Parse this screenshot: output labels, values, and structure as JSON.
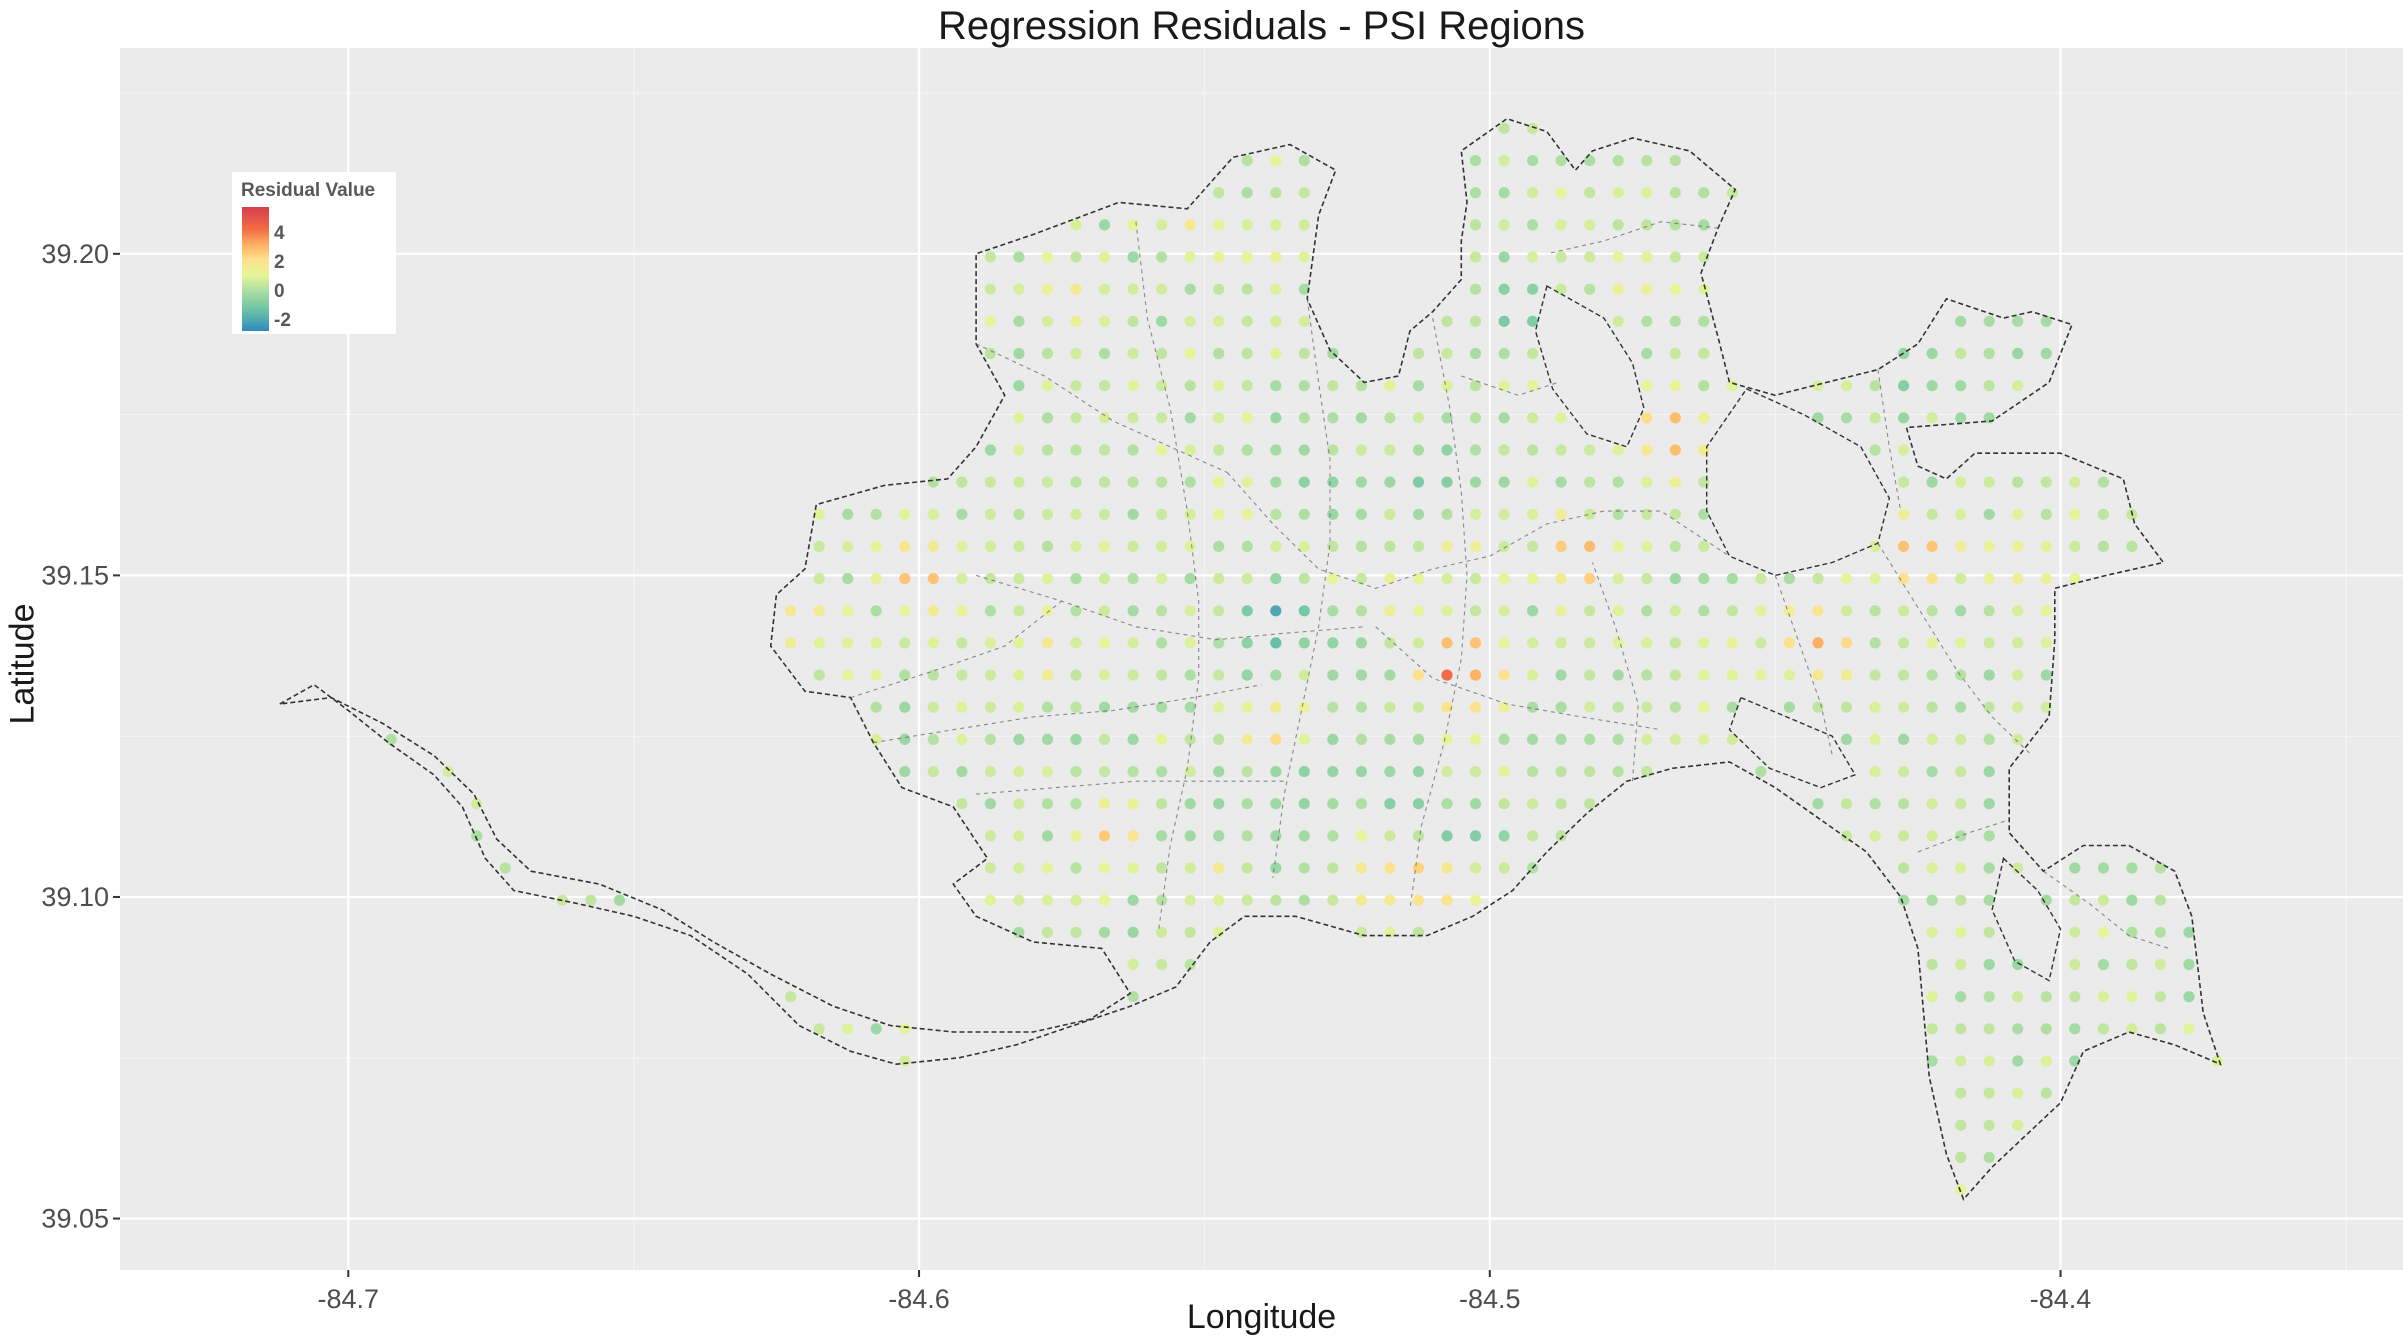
{
  "title": "Regression Residuals - PSI Regions",
  "x_axis": {
    "label": "Longitude",
    "ticks": [
      "-84.7",
      "-84.6",
      "-84.5",
      "-84.4"
    ],
    "tick_values": [
      -84.7,
      -84.6,
      -84.5,
      -84.4
    ]
  },
  "y_axis": {
    "label": "Latitude",
    "ticks": [
      "39.05",
      "39.10",
      "39.15",
      "39.20"
    ],
    "tick_values": [
      39.05,
      39.1,
      39.15,
      39.2
    ]
  },
  "legend": {
    "title": "Residual Value",
    "labels": [
      "4",
      "2",
      "0",
      "-2"
    ],
    "label_values": [
      4,
      2,
      0,
      -2
    ],
    "placement": "top-left"
  },
  "colors": {
    "panel_background": "#ebebeb",
    "grid_major": "#ffffff",
    "region_border": "#333333",
    "scale": [
      "#3288bd",
      "#66c2a5",
      "#abdda4",
      "#e6f598",
      "#fee08b",
      "#fdae61",
      "#f46d43",
      "#d53e4f"
    ]
  },
  "chart_data": {
    "type": "scatter",
    "grid_spacing_degrees": 0.005,
    "xlim": [
      -84.74,
      -84.34
    ],
    "ylim": [
      39.042,
      39.232
    ],
    "hotspots": [
      {
        "lon": -84.505,
        "lat": 39.135,
        "residual": 4.5
      },
      {
        "lon": -84.535,
        "lat": 39.125,
        "residual": 3.0
      },
      {
        "lon": -84.468,
        "lat": 39.172,
        "residual": 2.8
      },
      {
        "lon": -84.425,
        "lat": 39.153,
        "residual": 2.7
      },
      {
        "lon": -84.484,
        "lat": 39.153,
        "residual": 2.6
      },
      {
        "lon": -84.442,
        "lat": 39.139,
        "residual": 2.5
      },
      {
        "lon": -84.6,
        "lat": 39.15,
        "residual": 2.5
      },
      {
        "lon": -84.55,
        "lat": 39.107,
        "residual": 2.7
      },
      {
        "lon": -84.565,
        "lat": 39.11,
        "residual": 2.2
      },
      {
        "lon": -84.51,
        "lat": 39.104,
        "residual": 2.6
      },
      {
        "lon": -84.498,
        "lat": 39.134,
        "residual": 1.5
      },
      {
        "lon": -84.52,
        "lat": 39.103,
        "residual": 1.5
      },
      {
        "lon": -84.578,
        "lat": 39.138,
        "residual": 1.2
      },
      {
        "lon": -84.62,
        "lat": 39.143,
        "residual": 1.3
      },
      {
        "lon": -84.573,
        "lat": 39.193,
        "residual": 1.2
      },
      {
        "lon": -84.552,
        "lat": 39.205,
        "residual": 1.2
      },
      {
        "lon": -84.515,
        "lat": 39.147,
        "residual": 1.0
      },
      {
        "lon": -84.528,
        "lat": 39.129,
        "residual": 1.1
      },
      {
        "lon": -84.505,
        "lat": 39.155,
        "residual": 1.0
      },
      {
        "lon": -84.405,
        "lat": 39.151,
        "residual": 1.1
      },
      {
        "lon": -84.475,
        "lat": 39.196,
        "residual": 0.9
      },
      {
        "lon": -84.508,
        "lat": 39.115,
        "residual": 1.0
      },
      {
        "lon": -84.545,
        "lat": 39.162,
        "residual": 0.9
      },
      {
        "lon": -84.458,
        "lat": 39.138,
        "residual": 0.8
      },
      {
        "lon": -84.538,
        "lat": 39.201,
        "residual": 0.8
      },
      {
        "lon": -84.437,
        "lat": 39.207,
        "residual": 0.8
      },
      {
        "lon": -84.537,
        "lat": 39.143,
        "residual": -2.2
      },
      {
        "lon": -84.495,
        "lat": 39.191,
        "residual": -1.4
      },
      {
        "lon": -84.51,
        "lat": 39.165,
        "residual": -1.2
      },
      {
        "lon": -84.535,
        "lat": 39.118,
        "residual": -1.1
      },
      {
        "lon": -84.515,
        "lat": 39.116,
        "residual": -1.2
      },
      {
        "lon": -84.505,
        "lat": 39.11,
        "residual": -1.3
      },
      {
        "lon": -84.427,
        "lat": 39.181,
        "residual": -1.0
      },
      {
        "lon": -84.527,
        "lat": 39.122,
        "residual": -0.9
      },
      {
        "lon": -84.548,
        "lat": 39.112,
        "residual": -0.9
      },
      {
        "lon": -84.532,
        "lat": 39.166,
        "residual": -0.9
      },
      {
        "lon": -84.525,
        "lat": 39.133,
        "residual": -0.8
      },
      {
        "lon": -84.49,
        "lat": 39.127,
        "residual": -0.7
      },
      {
        "lon": -84.555,
        "lat": 39.108,
        "residual": -0.7
      }
    ],
    "background_residual_range": [
      -0.6,
      0.6
    ]
  }
}
